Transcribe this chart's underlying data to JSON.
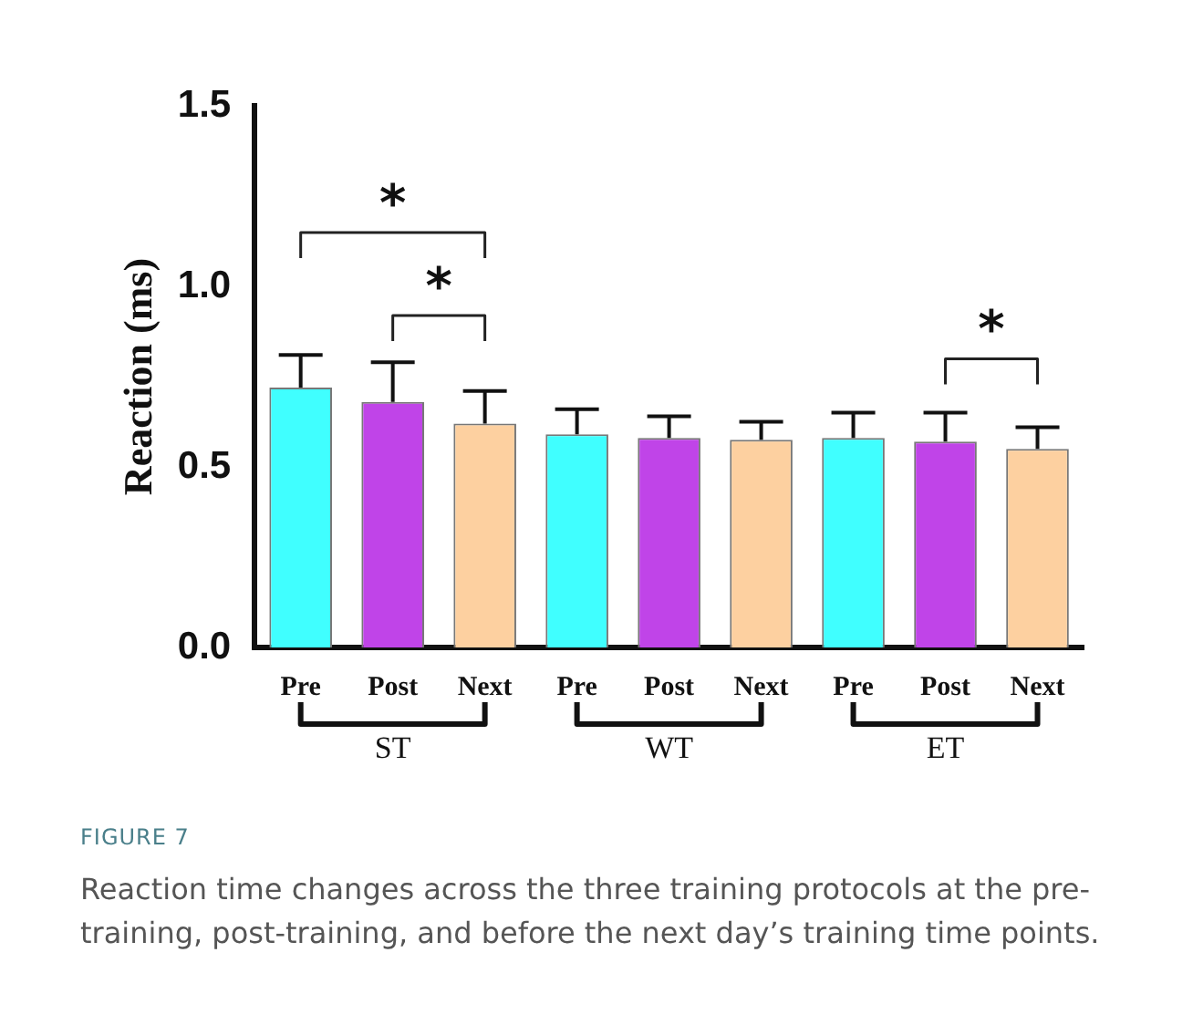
{
  "chart_data": {
    "type": "bar",
    "ylabel": "Reaction (ms)",
    "categories": [
      "Pre",
      "Post",
      "Next",
      "Pre",
      "Post",
      "Next",
      "Pre",
      "Post",
      "Next"
    ],
    "values": [
      0.72,
      0.68,
      0.62,
      0.59,
      0.58,
      0.575,
      0.58,
      0.57,
      0.55
    ],
    "colors": [
      "#40ffff",
      "#c044e8",
      "#fdd0a0",
      "#40ffff",
      "#c044e8",
      "#fdd0a0",
      "#40ffff",
      "#c044e8",
      "#fdd0a0"
    ],
    "errors": [
      [
        0.72,
        0.81
      ],
      [
        0.68,
        0.79
      ],
      [
        0.62,
        0.71
      ],
      [
        0.59,
        0.66
      ],
      [
        0.58,
        0.64
      ],
      [
        0.575,
        0.625
      ],
      [
        0.58,
        0.65
      ],
      [
        0.57,
        0.65
      ],
      [
        0.55,
        0.61
      ]
    ],
    "ylim": [
      0,
      1.5
    ],
    "yticks": [
      {
        "value": 0,
        "label": "0.0"
      },
      {
        "value": 0.5,
        "label": "0.5"
      },
      {
        "value": 1,
        "label": "1.0"
      },
      {
        "value": 1.5,
        "label": "1.5"
      }
    ],
    "grid": false,
    "legend": false,
    "annotations": [
      "*",
      "*",
      "*",
      "ST",
      "WT",
      "ET",
      "FIGURE 7",
      "Reaction time changes across the three training protocols at the pre-training, post-training, and before the next day’s training time points."
    ]
  }
}
